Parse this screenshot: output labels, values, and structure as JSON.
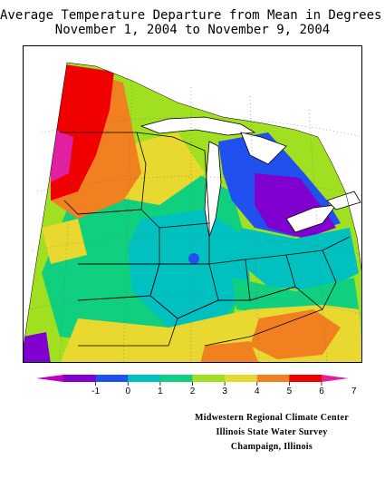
{
  "title": {
    "line1": "Average Temperature Departure from Mean in Degrees F",
    "line2": "November 1, 2004 to November 9, 2004"
  },
  "legend": {
    "ticks": [
      "-1",
      "0",
      "1",
      "2",
      "3",
      "4",
      "5",
      "6",
      "7"
    ],
    "colors": [
      "#c000c0",
      "#8000d0",
      "#2050f0",
      "#00c0c0",
      "#10d080",
      "#a0e020",
      "#e8d830",
      "#f08020",
      "#f00000",
      "#e020a0"
    ]
  },
  "credits": {
    "line1": "Midwestern Regional Climate Center",
    "line2": "Illinois State Water Survey",
    "line3": "Champaign, Illinois"
  }
}
